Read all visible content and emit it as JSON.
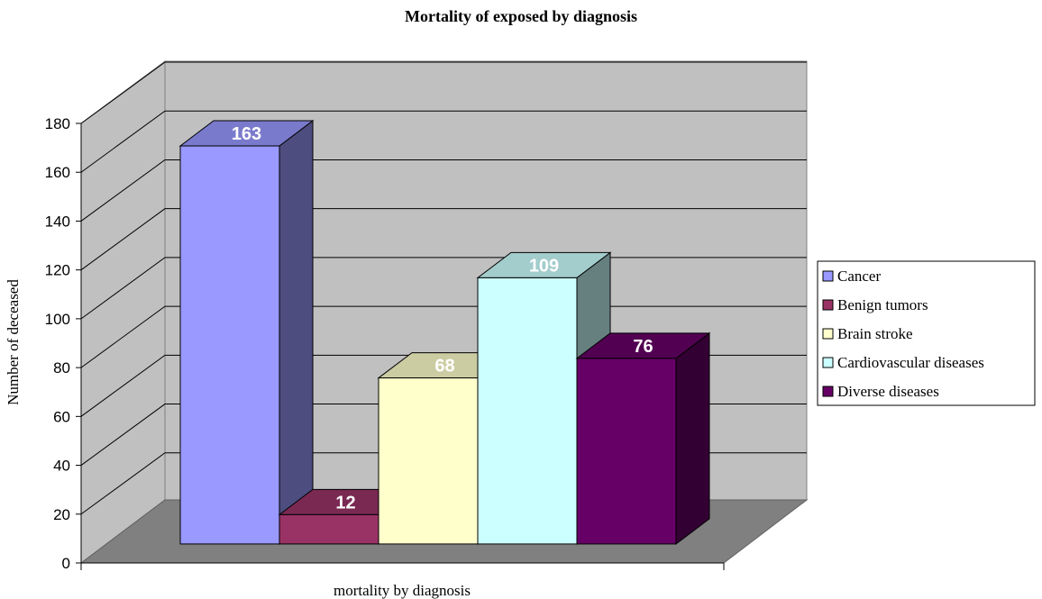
{
  "chart_data": {
    "type": "bar",
    "title": "Mortality of exposed by diagnosis",
    "ylabel": "Number of deceased",
    "xlabel": "mortality by diagnosis",
    "categories": [
      "mortality by diagnosis"
    ],
    "series": [
      {
        "name": "Cancer",
        "color": "#9999ff",
        "values": [
          163
        ]
      },
      {
        "name": "Benign tumors",
        "color": "#993366",
        "values": [
          12
        ]
      },
      {
        "name": "Brain stroke",
        "color": "#ffffcc",
        "values": [
          68
        ]
      },
      {
        "name": "Cardiovascular diseases",
        "color": "#ccffff",
        "values": [
          109
        ]
      },
      {
        "name": "Diverse diseases",
        "color": "#660066",
        "values": [
          76
        ]
      }
    ],
    "ylim": [
      0,
      180
    ],
    "yticks": [
      0,
      20,
      40,
      60,
      80,
      100,
      120,
      140,
      160,
      180
    ],
    "grid": true,
    "legend": "right"
  }
}
